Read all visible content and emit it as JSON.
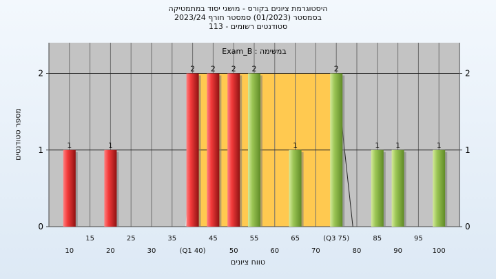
{
  "chart_data": {
    "type": "bar",
    "title_lines": [
      "היסטוגרמת ציונים בקורס - מושגי יסוד במתמטיקה",
      "בסמסטר  (01/2023)  סמסטר חורף 2023/24",
      "סטודנטים רשומים - 113"
    ],
    "xlabel": "טווח ציונים",
    "ylabel": "מספר סטודנטים",
    "series_label": "במשימה : Exam_B",
    "xlim": [
      5,
      105
    ],
    "ylim": [
      0,
      2.4
    ],
    "yticks": [
      0,
      1,
      2
    ],
    "x_tick_labels": [
      {
        "x": 10,
        "label": "10",
        "row": 2
      },
      {
        "x": 15,
        "label": "15",
        "row": 1
      },
      {
        "x": 20,
        "label": "20",
        "row": 2
      },
      {
        "x": 25,
        "label": "25",
        "row": 1
      },
      {
        "x": 30,
        "label": "30",
        "row": 2
      },
      {
        "x": 35,
        "label": "35",
        "row": 1
      },
      {
        "x": 40,
        "label": "(Q1 40)",
        "row": 2
      },
      {
        "x": 45,
        "label": "45",
        "row": 1
      },
      {
        "x": 50,
        "label": "50",
        "row": 2
      },
      {
        "x": 55,
        "label": "55",
        "row": 1
      },
      {
        "x": 60,
        "label": "60",
        "row": 2
      },
      {
        "x": 65,
        "label": "65",
        "row": 1
      },
      {
        "x": 70,
        "label": "70",
        "row": 2
      },
      {
        "x": 75,
        "label": "(Q3 75)",
        "row": 1
      },
      {
        "x": 80,
        "label": "80",
        "row": 2
      },
      {
        "x": 85,
        "label": "85",
        "row": 1
      },
      {
        "x": 90,
        "label": "90",
        "row": 2
      },
      {
        "x": 95,
        "label": "95",
        "row": 1
      },
      {
        "x": 100,
        "label": "100",
        "row": 2
      }
    ],
    "bars": [
      {
        "x": 10,
        "value": 1,
        "color": "red"
      },
      {
        "x": 20,
        "value": 1,
        "color": "red"
      },
      {
        "x": 40,
        "value": 2,
        "color": "red"
      },
      {
        "x": 45,
        "value": 2,
        "color": "red"
      },
      {
        "x": 50,
        "value": 2,
        "color": "red"
      },
      {
        "x": 55,
        "value": 2,
        "color": "green"
      },
      {
        "x": 65,
        "value": 1,
        "color": "green"
      },
      {
        "x": 75,
        "value": 2,
        "color": "green"
      },
      {
        "x": 85,
        "value": 1,
        "color": "green"
      },
      {
        "x": 90,
        "value": 1,
        "color": "green"
      },
      {
        "x": 100,
        "value": 1,
        "color": "green"
      }
    ],
    "iqr_band": {
      "from": 40,
      "to": 75,
      "color": "#ffc950"
    },
    "colors": {
      "plot_bg": "#c3c3c3",
      "grid": "#6e6e6e",
      "red_light": "#ff8080",
      "red": "#e62a2a",
      "red_dark": "#8f1212",
      "green_light": "#d4ea9a",
      "green": "#9bc555",
      "green_dark": "#5f8a26"
    }
  }
}
